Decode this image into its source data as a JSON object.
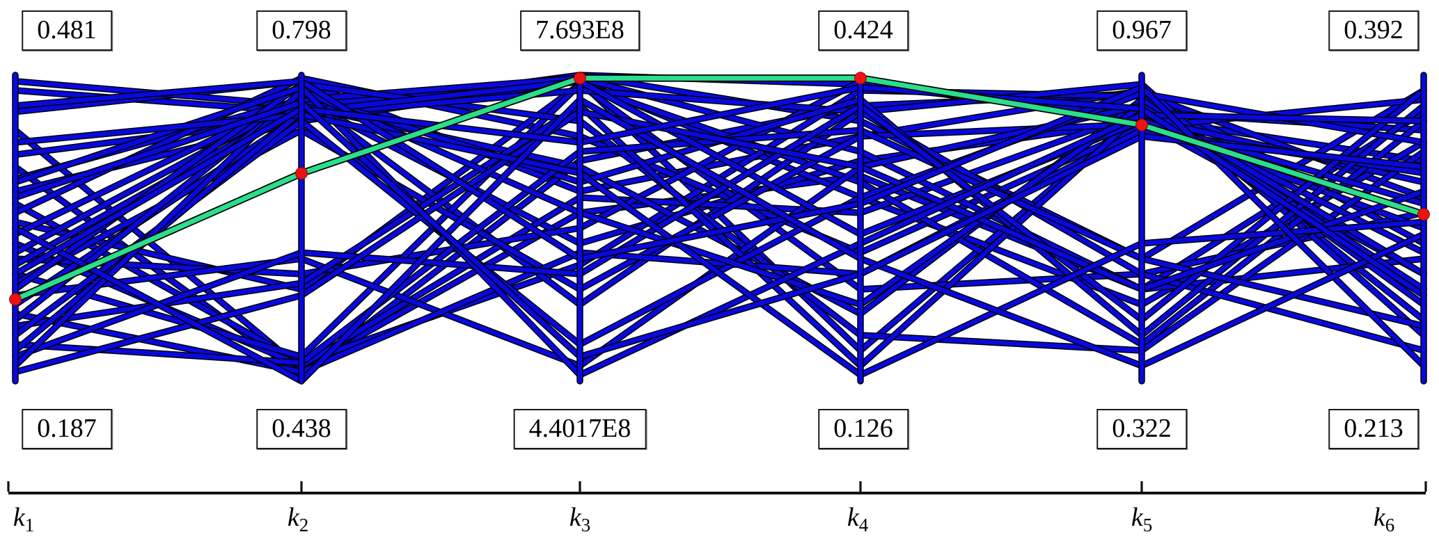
{
  "chart_data": {
    "type": "parallel-coordinates",
    "title": "",
    "grid": false,
    "legend": "none",
    "axes": [
      {
        "name": "k",
        "sub": "1",
        "max": "0.481",
        "min": "0.187"
      },
      {
        "name": "k",
        "sub": "2",
        "max": "0.798",
        "min": "0.438"
      },
      {
        "name": "k",
        "sub": "3",
        "max": "7.693E8",
        "min": "4.4017E8"
      },
      {
        "name": "k",
        "sub": "4",
        "max": "0.424",
        "min": "0.126"
      },
      {
        "name": "k",
        "sub": "5",
        "max": "0.967",
        "min": "0.322"
      },
      {
        "name": "k",
        "sub": "6",
        "max": "0.392",
        "min": "0.213"
      }
    ],
    "colors": {
      "line": "#0909DD",
      "line_edge": "#000000",
      "highlight": "#2BDE8C",
      "marker": "#EE1111",
      "scale_bar": "#111111"
    },
    "highlighted_line": {
      "normalized": [
        0.267,
        0.679,
        0.99,
        0.99,
        0.837,
        0.545
      ],
      "approx_values": [
        "0.265",
        "0.682",
        "7.693E8",
        "0.424",
        "0.862",
        "0.311"
      ]
    },
    "lines_normalized": [
      [
        0.95,
        0.88,
        1.0,
        0.97,
        0.86,
        0.72
      ],
      [
        0.88,
        0.98,
        0.62,
        0.8,
        0.95,
        0.45
      ],
      [
        0.82,
        0.04,
        0.55,
        0.67,
        0.3,
        0.88
      ],
      [
        0.98,
        0.9,
        0.98,
        0.1,
        0.88,
        0.3
      ],
      [
        0.74,
        0.86,
        1.0,
        0.85,
        0.4,
        0.95
      ],
      [
        0.7,
        0.02,
        0.72,
        0.9,
        0.94,
        0.6
      ],
      [
        0.66,
        0.92,
        0.45,
        0.72,
        0.85,
        0.35
      ],
      [
        0.62,
        0.85,
        0.98,
        0.6,
        0.25,
        0.78
      ],
      [
        0.58,
        0.06,
        0.38,
        0.95,
        0.93,
        0.2
      ],
      [
        0.55,
        0.99,
        0.8,
        0.42,
        0.83,
        0.92
      ],
      [
        0.52,
        0.3,
        0.97,
        0.3,
        0.35,
        0.55
      ],
      [
        0.48,
        0.93,
        0.25,
        0.88,
        0.97,
        0.15
      ],
      [
        0.45,
        0.05,
        0.6,
        0.55,
        0.88,
        0.82
      ],
      [
        0.42,
        0.92,
        0.99,
        0.75,
        0.3,
        0.4
      ],
      [
        0.4,
        0.35,
        0.5,
        0.98,
        0.86,
        0.65
      ],
      [
        0.38,
        0.9,
        0.7,
        0.22,
        0.92,
        0.25
      ],
      [
        0.35,
        0.08,
        0.97,
        0.65,
        0.12,
        0.85
      ],
      [
        0.32,
        0.82,
        0.3,
        0.8,
        0.84,
        0.5
      ],
      [
        0.3,
        0.97,
        0.85,
        0.15,
        0.1,
        0.75
      ],
      [
        0.28,
        0.4,
        0.05,
        0.7,
        0.9,
        0.3
      ],
      [
        0.25,
        0.87,
        0.95,
        0.88,
        0.35,
        0.1
      ],
      [
        0.22,
        0.03,
        0.42,
        0.35,
        0.82,
        0.68
      ],
      [
        0.2,
        0.94,
        0.65,
        0.92,
        0.15,
        0.9
      ],
      [
        0.18,
        0.32,
        0.9,
        0.05,
        0.88,
        0.42
      ],
      [
        0.15,
        0.85,
        0.12,
        0.6,
        0.94,
        0.78
      ],
      [
        0.12,
        0.06,
        0.75,
        0.82,
        0.4,
        0.18
      ],
      [
        0.1,
        0.88,
        0.98,
        0.48,
        0.85,
        0.58
      ],
      [
        0.08,
        0.42,
        0.35,
        0.9,
        0.2,
        0.95
      ],
      [
        0.05,
        0.95,
        0.55,
        0.25,
        0.9,
        0.35
      ],
      [
        0.03,
        0.28,
        0.88,
        0.7,
        0.3,
        0.62
      ],
      [
        0.65,
        0.96,
        0.02,
        0.45,
        0.87,
        0.85
      ],
      [
        0.78,
        0.87,
        0.68,
        0.02,
        0.45,
        0.52
      ],
      [
        0.9,
        0.98,
        0.4,
        0.58,
        0.96,
        0.05
      ],
      [
        0.5,
        0.0,
        0.92,
        0.4,
        0.05,
        0.48
      ],
      [
        0.35,
        0.89,
        0.78,
        0.96,
        0.89,
        0.28
      ],
      [
        0.6,
        0.91,
        0.08,
        0.35,
        0.8,
        0.7
      ]
    ]
  }
}
